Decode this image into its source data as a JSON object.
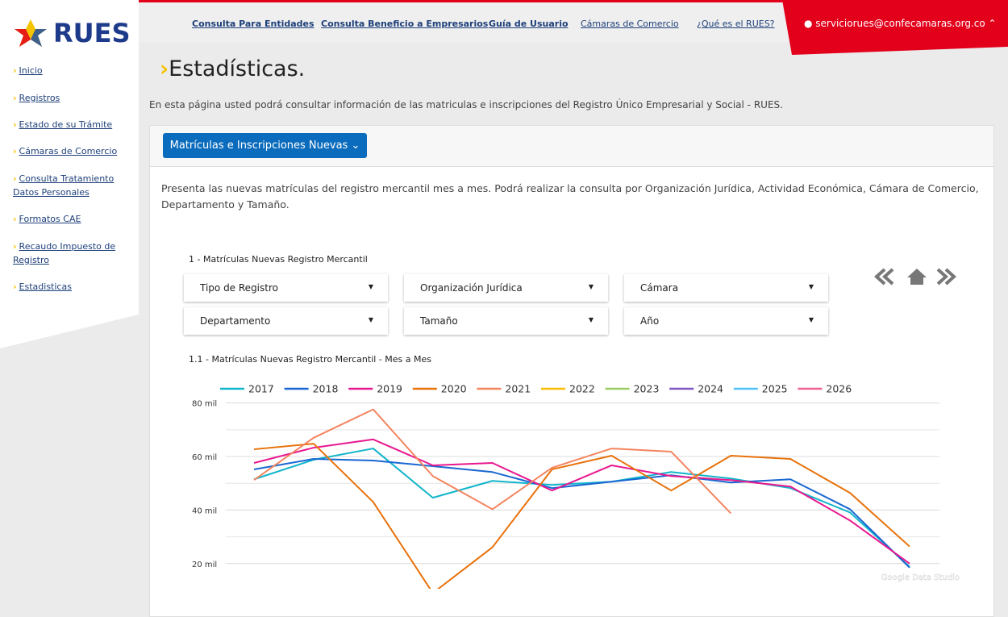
{
  "logo": "RUES",
  "sidebar": [
    "Inicio",
    "Registros",
    "Estado de su Trámite",
    "Cámaras de Comercio",
    "Consulta Tratamiento Datos Personales",
    "Formatos CAE",
    "Recaudo Impuesto de Registro",
    "Estadisticas"
  ],
  "topnav": [
    "Consulta Para Entidades",
    "Consulta Beneficio a Empresarios",
    "Guía de Usuario",
    "Cámaras de Comercio",
    "¿Qué es el RUES?"
  ],
  "user": "serviciorues@confecamaras.org.co",
  "page_title": "Estadísticas.",
  "intro": "En esta página usted podrá consultar información de las matriculas e inscripciones del Registro Único Empresarial y Social - RUES.",
  "tab_button": "Matrículas e Inscripciones Nuevas",
  "tab_description": "Presenta las nuevas matrículas del registro mercantil mes a mes. Podrá realizar la consulta por Organización Jurídica, Actividad Económica, Cámara de Comercio, Departamento y Tamaño.",
  "report_title": "1 - Matrículas Nuevas Registro Mercantil",
  "filters": [
    "Tipo de Registro",
    "Organización Jurídica",
    "Cámara",
    "Departamento",
    "Tamaño",
    "Año"
  ],
  "watermark": "Google Data Studio",
  "chart_data": {
    "type": "line",
    "title": "1.1 - Matrículas Nuevas Registro Mercantil - Mes a Mes",
    "categories": [
      null,
      null,
      null,
      null,
      null,
      null,
      null,
      null,
      null,
      null,
      null,
      null
    ],
    "series": [
      {
        "name": "2017",
        "color": "#12b5cb",
        "values": [
          51500,
          58800,
          63000,
          44600,
          50900,
          49400,
          50600,
          54200,
          51800,
          48200,
          39100,
          18800
        ]
      },
      {
        "name": "2018",
        "color": "#1967d2",
        "values": [
          55200,
          59100,
          58500,
          56400,
          54200,
          48200,
          50600,
          53000,
          50300,
          51500,
          40300,
          18500
        ]
      },
      {
        "name": "2019",
        "color": "#e8198f",
        "values": [
          57600,
          63300,
          66400,
          56700,
          57600,
          47300,
          56700,
          52700,
          51200,
          48800,
          36100,
          20000
        ]
      },
      {
        "name": "2020",
        "color": "#e8710a",
        "values": [
          62700,
          64800,
          43000,
          9000,
          26100,
          55200,
          60300,
          47300,
          60300,
          59100,
          46400,
          26400
        ]
      },
      {
        "name": "2021",
        "color": "#f4845f",
        "values": [
          51200,
          67000,
          77600,
          52700,
          40300,
          55800,
          63000,
          61800,
          38800,
          null,
          null,
          null
        ]
      },
      {
        "name": "2022",
        "color": "#fbbc04",
        "values": [
          null,
          null,
          null,
          null,
          null,
          null,
          null,
          null,
          null,
          null,
          null,
          null
        ]
      },
      {
        "name": "2023",
        "color": "#9ccc65",
        "values": [
          null,
          null,
          null,
          null,
          null,
          null,
          null,
          null,
          null,
          null,
          null,
          null
        ]
      },
      {
        "name": "2024",
        "color": "#7e57c2",
        "values": [
          null,
          null,
          null,
          null,
          null,
          null,
          null,
          null,
          null,
          null,
          null,
          null
        ]
      },
      {
        "name": "2025",
        "color": "#4fc3f7",
        "values": [
          null,
          null,
          null,
          null,
          null,
          null,
          null,
          null,
          null,
          null,
          null,
          null
        ]
      },
      {
        "name": "2026",
        "color": "#f06292",
        "values": [
          null,
          null,
          null,
          null,
          null,
          null,
          null,
          null,
          null,
          null,
          null,
          null
        ]
      }
    ],
    "ylim": [
      10000,
      82000
    ],
    "yticks": [
      {
        "value": 20000,
        "label": "20 mil"
      },
      {
        "value": 40000,
        "label": "40 mil"
      },
      {
        "value": 60000,
        "label": "60 mil"
      },
      {
        "value": 80000,
        "label": "80 mil"
      }
    ],
    "minor_grid": [
      30000,
      50000,
      70000
    ],
    "grid": true,
    "legend": "top"
  }
}
